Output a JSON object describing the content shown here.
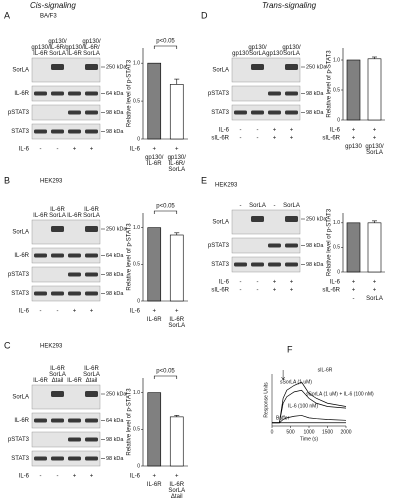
{
  "headers": {
    "cis": "Cis-signaling",
    "trans": "Trans-signaling"
  },
  "panels": [
    {
      "letter": "A",
      "cell": "BA/F3",
      "lanes": [
        "gp130/ IL-6R",
        "gp130/ IL-6R/ SorLA",
        "gp130/ IL-6R",
        "gp130/ IL-6R/ SorLA"
      ],
      "rows": [
        "SorLA",
        "IL-6R",
        "pSTAT3",
        "STAT3"
      ],
      "markers": [
        "250 kDa",
        "64 kDa",
        "98 kDa",
        "98 kDa"
      ],
      "treatments": [
        {
          "name": "IL-6",
          "values": [
            "-",
            "-",
            "+",
            "+"
          ]
        }
      ]
    },
    {
      "letter": "B",
      "cell": "HEK293",
      "lanes": [
        "IL-6R",
        "IL-6R SorLA",
        "IL-6R",
        "IL-6R SorLA"
      ],
      "rows": [
        "SorLA",
        "IL-6R",
        "pSTAT3",
        "STAT3"
      ],
      "markers": [
        "250 kDa",
        "64 kDa",
        "98 kDa",
        "98 kDa"
      ],
      "treatments": [
        {
          "name": "IL-6",
          "values": [
            "-",
            "-",
            "+",
            "+"
          ]
        }
      ]
    },
    {
      "letter": "C",
      "cell": "HEK293",
      "lanes": [
        "IL-6R",
        "IL-6R SorLA Δtail",
        "IL-6R",
        "IL-6R SorLA Δtail"
      ],
      "rows": [
        "SorLA",
        "IL-6R",
        "pSTAT3",
        "STAT3"
      ],
      "markers": [
        "250 kDa",
        "64 kDa",
        "98 kDa",
        "98 kDa"
      ],
      "treatments": [
        {
          "name": "IL-6",
          "values": [
            "-",
            "-",
            "+",
            "+"
          ]
        }
      ]
    },
    {
      "letter": "D",
      "cell": "BA/F3",
      "lanes": [
        "gp130",
        "gp130/ SorLA",
        "gp130",
        "gp130/ SorLA"
      ],
      "rows": [
        "SorLA",
        "pSTAT3",
        "STAT3"
      ],
      "markers": [
        "250 kDa",
        "98 kDa",
        "98 kDa"
      ],
      "treatments": [
        {
          "name": "IL-6",
          "values": [
            "-",
            "-",
            "+",
            "+"
          ]
        },
        {
          "name": "sIL-6R",
          "values": [
            "-",
            "-",
            "+",
            "+"
          ]
        }
      ]
    },
    {
      "letter": "E",
      "cell": "HEK293",
      "lanes": [
        "-",
        "SorLA",
        "-",
        "SorLA"
      ],
      "rows": [
        "SorLA",
        "pSTAT3",
        "STAT3"
      ],
      "markers": [
        "250 kDa",
        "98 kDa",
        "98 kDa"
      ],
      "treatments": [
        {
          "name": "IL-6",
          "values": [
            "-",
            "-",
            "+",
            "+"
          ]
        },
        {
          "name": "sIL-6R",
          "values": [
            "-",
            "-",
            "+",
            "+"
          ]
        }
      ]
    },
    {
      "letter": "F"
    }
  ],
  "chart_data": [
    {
      "type": "bar",
      "y_label": "Relative level of p-STAT3",
      "categories": [
        "gp130/ IL-6R",
        "gp130/ IL-6R/ SorLA"
      ],
      "values": [
        1,
        0.72
      ],
      "errors": [
        0,
        0.07
      ],
      "colors": [
        "#808080",
        "#ffffff"
      ],
      "ylim": [
        0,
        1.2
      ],
      "yticks": [
        0,
        0.5,
        {
          "value": 1,
          "label": "1.0"
        }
      ],
      "annotation": "p<0.05",
      "treatments": [
        {
          "name": "IL-6",
          "values": [
            "+",
            "+"
          ]
        }
      ]
    },
    {
      "type": "bar",
      "y_label": "Relative level of p-STAT3",
      "categories": [
        "IL-6R",
        "IL-6R SorLA"
      ],
      "values": [
        1,
        0.9
      ],
      "errors": [
        0,
        0.03
      ],
      "colors": [
        "#808080",
        "#ffffff"
      ],
      "ylim": [
        0,
        1.2
      ],
      "yticks": [
        0,
        0.5,
        {
          "value": 1,
          "label": "1.0"
        }
      ],
      "annotation": "p<0.05",
      "treatments": [
        {
          "name": "IL-6",
          "values": [
            "+",
            "+"
          ]
        }
      ]
    },
    {
      "type": "bar",
      "y_label": "Relative level of p-STAT3",
      "categories": [
        "IL-6R",
        "IL-6R SorLA Δtail"
      ],
      "values": [
        1,
        0.67
      ],
      "errors": [
        0,
        0.02
      ],
      "colors": [
        "#808080",
        "#ffffff"
      ],
      "ylim": [
        0,
        1.2
      ],
      "yticks": [
        0,
        0.5,
        {
          "value": 1,
          "label": "1.0"
        }
      ],
      "annotation": "p<0.05",
      "treatments": [
        {
          "name": "IL-6",
          "values": [
            "+",
            "+"
          ]
        }
      ]
    },
    {
      "type": "bar",
      "y_label": "Relative level of p-STAT3",
      "categories": [
        "gp130",
        "gp130/ SorLA"
      ],
      "values": [
        1,
        1.02
      ],
      "errors": [
        0,
        0.03
      ],
      "colors": [
        "#808080",
        "#ffffff"
      ],
      "ylim": [
        0,
        1.2
      ],
      "yticks": [
        0,
        0.5,
        {
          "value": 1,
          "label": "1.0"
        }
      ],
      "treatments": [
        {
          "name": "IL-6",
          "values": [
            "+",
            "+"
          ]
        },
        {
          "name": "sIL-6R",
          "values": [
            "+",
            "+"
          ]
        }
      ]
    },
    {
      "type": "bar",
      "y_label": "Relative level of p-STAT3",
      "categories": [
        "-",
        "SorLA"
      ],
      "values": [
        1,
        1
      ],
      "errors": [
        0,
        0.04
      ],
      "colors": [
        "#808080",
        "#ffffff"
      ],
      "ylim": [
        0,
        1.2
      ],
      "yticks": [
        0,
        0.5,
        {
          "value": 1,
          "label": "1.0"
        }
      ],
      "treatments": [
        {
          "name": "IL-6",
          "values": [
            "+",
            "+"
          ]
        },
        {
          "name": "sIL-6R",
          "values": [
            "+",
            "+"
          ]
        }
      ]
    },
    {
      "type": "line",
      "title": "sIL-6R",
      "x_label": "Time (s)",
      "y_label": "Response Units",
      "x": [
        0,
        200,
        300,
        400,
        600,
        800,
        1000,
        1200,
        1500,
        2000
      ],
      "series": [
        {
          "name": "sSorLA (1 uM) + IL-6 (100 nM)",
          "color": "#000000",
          "values": [
            0,
            0,
            150,
            200,
            230,
            250,
            180,
            150,
            120,
            100
          ]
        },
        {
          "name": "sSorLA (1 uM)",
          "color": "#000000",
          "values": [
            0,
            0,
            120,
            160,
            190,
            200,
            150,
            120,
            100,
            90
          ]
        },
        {
          "name": "IL-6 (100 nM)",
          "color": "#000000",
          "values": [
            0,
            0,
            20,
            30,
            40,
            45,
            30,
            25,
            20,
            15
          ]
        },
        {
          "name": "Buffer",
          "color": "#000000",
          "values": [
            0,
            0,
            0,
            0,
            0,
            0,
            0,
            0,
            0,
            0
          ]
        }
      ],
      "xlim": [
        0,
        2000
      ],
      "xticks": [
        0,
        500,
        1000,
        1500,
        2000
      ],
      "ylim": [
        -20,
        300
      ]
    }
  ]
}
